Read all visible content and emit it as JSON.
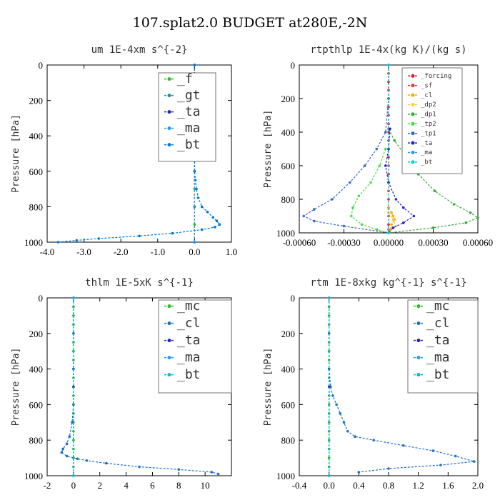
{
  "figure_title": "107.splat2.0  BUDGET at280E,-2N",
  "chart_data": [
    {
      "type": "line",
      "title": "um  1E-4xm s^{-2}",
      "ylabel": "Pressure [hPa]",
      "xlim": [
        -4.0,
        1.0
      ],
      "ylim": [
        1000,
        0
      ],
      "xticks": [
        "-4.0",
        "-3.0",
        "-2.0",
        "-1.0",
        "0.0",
        "1.0"
      ],
      "yticks": [
        "0",
        "200",
        "400",
        "600",
        "800",
        "1000"
      ],
      "legend_position": "top-right",
      "series": [
        {
          "name": "_f",
          "color": "#22c022",
          "pressure": [
            0,
            100,
            200,
            300,
            400,
            500,
            600,
            700,
            800,
            900,
            1000
          ],
          "values": [
            0,
            0,
            0,
            0,
            0,
            0,
            0,
            0,
            0,
            0,
            0
          ]
        },
        {
          "name": "_gt",
          "color": "#1a8fa0",
          "pressure": [
            0,
            200,
            400,
            600,
            800,
            1000
          ],
          "values": [
            0,
            0,
            0,
            0,
            0,
            0
          ]
        },
        {
          "name": "_ta",
          "color": "#2222cc",
          "pressure": [
            0,
            500,
            1000
          ],
          "values": [
            0,
            0,
            0
          ]
        },
        {
          "name": "_ma",
          "color": "#2299ff",
          "pressure": [
            0,
            1000
          ],
          "values": [
            0,
            0
          ]
        },
        {
          "name": "_bt",
          "color": "#0077dd",
          "pressure": [
            0,
            100,
            200,
            300,
            400,
            500,
            600,
            650,
            700,
            750,
            800,
            830,
            860,
            880,
            900,
            915,
            930,
            950,
            965,
            980,
            990,
            1000
          ],
          "values": [
            0.0,
            0.0,
            0.02,
            0.03,
            0.02,
            0.01,
            0.0,
            0.02,
            0.05,
            0.1,
            0.2,
            0.35,
            0.5,
            0.6,
            0.68,
            0.55,
            0.2,
            -0.6,
            -1.5,
            -2.6,
            -3.2,
            -3.7
          ]
        }
      ]
    },
    {
      "type": "line",
      "title": "rtpthlp  1E-4x(kg K)/(kg s)",
      "ylabel": "Pressure [hPa]",
      "xlim": [
        -0.0006,
        0.0006
      ],
      "ylim": [
        1000,
        0
      ],
      "xticks": [
        "-0.00060",
        "-0.00030",
        "0.00000",
        "0.00030",
        "0.00060"
      ],
      "yticks": [
        "0",
        "200",
        "400",
        "600",
        "800",
        "1000"
      ],
      "legend_position": "top-right",
      "series": [
        {
          "name": "_forcing",
          "color": "#dd2222",
          "pressure": [
            0,
            50,
            100,
            150,
            200,
            250,
            300,
            350,
            400,
            450,
            500,
            550,
            600,
            650,
            700,
            750,
            800,
            850,
            900,
            950,
            1000
          ],
          "values": [
            0,
            0,
            0,
            0,
            0,
            0,
            0,
            0,
            0,
            0,
            0,
            0,
            0,
            0,
            0,
            0,
            0,
            0,
            0,
            0,
            0
          ]
        },
        {
          "name": "_sf",
          "color": "#ee3333",
          "pressure": [
            980,
            1000
          ],
          "values": [
            0.0,
            0.0
          ]
        },
        {
          "name": "_cl",
          "color": "#ffaa00",
          "pressure": [
            850,
            880,
            900,
            920,
            950,
            980,
            1000
          ],
          "values": [
            0.0,
            2e-05,
            3e-05,
            4e-05,
            2e-05,
            1e-05,
            0.0
          ]
        },
        {
          "name": "_dp2",
          "color": "#ffcc33",
          "pressure": [
            880,
            920,
            960,
            1000
          ],
          "values": [
            0.0,
            3e-05,
            5e-05,
            0.0
          ]
        },
        {
          "name": "_dp1",
          "color": "#33aa33",
          "pressure": [
            0,
            200,
            380,
            450,
            550,
            650,
            750,
            830,
            880,
            910,
            940,
            970,
            1000
          ],
          "values": [
            0.0,
            0.0,
            0.0,
            4e-05,
            0.00012,
            0.0002,
            0.00031,
            0.00044,
            0.00055,
            0.0006,
            0.00052,
            0.0003,
            0.0
          ]
        },
        {
          "name": "_tp2",
          "color": "#44dd44",
          "pressure": [
            500,
            600,
            700,
            780,
            850,
            900,
            950,
            980,
            1000
          ],
          "values": [
            -2e-05,
            -6e-05,
            -0.00012,
            -0.0002,
            -0.00024,
            -0.00025,
            -0.00018,
            -8e-05,
            0.0
          ]
        },
        {
          "name": "_tp1",
          "color": "#3366cc",
          "pressure": [
            0,
            200,
            400,
            500,
            600,
            700,
            800,
            860,
            900,
            930,
            960,
            1000
          ],
          "values": [
            0.0,
            0.0,
            -2e-05,
            -8e-05,
            -0.00016,
            -0.00026,
            -0.00038,
            -0.0005,
            -0.00057,
            -0.0005,
            -0.0003,
            0.0
          ]
        },
        {
          "name": "_ta",
          "color": "#2222cc",
          "pressure": [
            380,
            500,
            600,
            700,
            800,
            850,
            900,
            940,
            970,
            1000
          ],
          "values": [
            1e-05,
            0.0,
            -2e-05,
            0.0,
            5e-05,
            0.0001,
            0.00017,
            0.0001,
            3e-05,
            0.0
          ]
        },
        {
          "name": "_ma",
          "color": "#2299ff",
          "pressure": [
            0,
            1000
          ],
          "values": [
            0.0,
            0.0
          ]
        },
        {
          "name": "_bt",
          "color": "#00ccee",
          "pressure": [
            0,
            1000
          ],
          "values": [
            0.0,
            0.0
          ]
        }
      ]
    },
    {
      "type": "line",
      "title": "thlm  1E-5xK s^{-1}",
      "ylabel": "Pressure [hPa]",
      "xlim": [
        -2,
        12
      ],
      "ylim": [
        1000,
        0
      ],
      "xticks": [
        "-2",
        "0",
        "2",
        "4",
        "6",
        "8",
        "10"
      ],
      "yticks": [
        "0",
        "200",
        "400",
        "600",
        "800",
        "1000"
      ],
      "legend_position": "top-right",
      "series": [
        {
          "name": "_mc",
          "color": "#22c022",
          "pressure": [
            0,
            50,
            100,
            150,
            200,
            250,
            300,
            350,
            400,
            450,
            500,
            550,
            600,
            650,
            700,
            750,
            800,
            850,
            900,
            950,
            1000
          ],
          "values": [
            0,
            0,
            0,
            0,
            0,
            0,
            0,
            0,
            0,
            0,
            0,
            0,
            0,
            0,
            0,
            0,
            0,
            0,
            0,
            0,
            0
          ]
        },
        {
          "name": "_cl",
          "color": "#1a70cc",
          "pressure": [
            0,
            200,
            400,
            600,
            700,
            780,
            820,
            850,
            870,
            890,
            905,
            915,
            930,
            950,
            965,
            980,
            990
          ],
          "values": [
            0.0,
            0.0,
            0.0,
            0.0,
            -0.1,
            -0.3,
            -0.5,
            -0.8,
            -0.9,
            -0.5,
            0.3,
            1.0,
            2.5,
            5.0,
            8.0,
            10.5,
            11.0
          ]
        },
        {
          "name": "_ta",
          "color": "#2222cc",
          "pressure": [
            0,
            500,
            1000
          ],
          "values": [
            0,
            0,
            0
          ]
        },
        {
          "name": "_ma",
          "color": "#2299ff",
          "pressure": [
            0,
            1000
          ],
          "values": [
            0,
            0
          ]
        },
        {
          "name": "_bt",
          "color": "#00bbdd",
          "pressure": [
            0,
            1000
          ],
          "values": [
            0,
            0
          ]
        }
      ]
    },
    {
      "type": "line",
      "title": "rtm  1E-8xkg kg^{-1} s^{-1}",
      "ylabel": "Pressure [hPa]",
      "xlim": [
        -0.4,
        2.0
      ],
      "ylim": [
        1000,
        0
      ],
      "xticks": [
        "-0.4",
        "0.0",
        "0.4",
        "0.8",
        "1.2",
        "1.6",
        "2.0"
      ],
      "yticks": [
        "0",
        "200",
        "400",
        "600",
        "800",
        "1000"
      ],
      "legend_position": "top-right",
      "series": [
        {
          "name": "_mc",
          "color": "#22c022",
          "pressure": [
            0,
            50,
            100,
            150,
            200,
            250,
            300,
            350,
            400,
            450,
            500,
            550,
            600,
            650,
            700,
            750,
            800,
            850,
            900,
            950,
            1000
          ],
          "values": [
            0,
            0,
            0,
            0,
            0,
            0,
            0,
            0,
            0,
            0,
            0,
            0,
            0,
            0,
            0,
            0,
            0,
            0,
            0,
            0,
            0
          ]
        },
        {
          "name": "_cl",
          "color": "#1a70cc",
          "pressure": [
            0,
            200,
            400,
            500,
            550,
            600,
            650,
            700,
            750,
            780,
            800,
            830,
            860,
            890,
            920,
            940,
            960,
            980
          ],
          "values": [
            0.0,
            0.0,
            0.0,
            0.02,
            0.05,
            0.1,
            0.15,
            0.2,
            0.25,
            0.35,
            0.6,
            1.0,
            1.4,
            1.7,
            1.95,
            1.5,
            0.8,
            0.4
          ]
        },
        {
          "name": "_ta",
          "color": "#2222cc",
          "pressure": [
            0,
            500,
            1000
          ],
          "values": [
            0,
            0,
            0
          ]
        },
        {
          "name": "_ma",
          "color": "#2299ff",
          "pressure": [
            0,
            1000
          ],
          "values": [
            0,
            0
          ]
        },
        {
          "name": "_bt",
          "color": "#00bbdd",
          "pressure": [
            0,
            1000
          ],
          "values": [
            0,
            0
          ]
        }
      ]
    }
  ]
}
